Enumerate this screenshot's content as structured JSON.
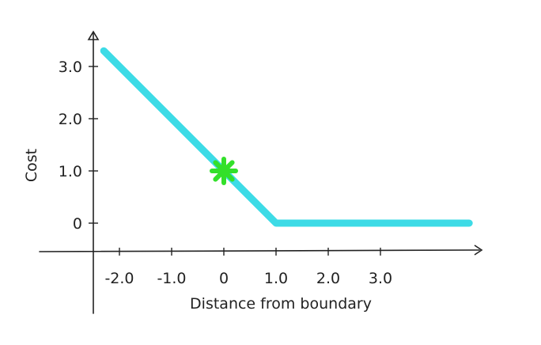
{
  "chart_data": {
    "type": "line",
    "title": "",
    "xlabel": "Distance from boundary",
    "ylabel": "Cost",
    "x_ticks": [
      -2.0,
      -1.0,
      0,
      1.0,
      2.0,
      3.0
    ],
    "x_tick_labels": [
      "-2.0",
      "-1.0",
      "0",
      "1.0",
      "2.0",
      "3.0"
    ],
    "y_ticks": [
      0,
      1.0,
      2.0,
      3.0
    ],
    "y_tick_labels": [
      "0",
      "1.0",
      "2.0",
      "3.0"
    ],
    "xlim": [
      -2.5,
      5.0
    ],
    "ylim": [
      -0.5,
      3.6
    ],
    "grid": false,
    "legend": "none",
    "series": [
      {
        "color": "#3ddbe6",
        "x": [
          -2.3,
          1.0,
          4.7
        ],
        "y": [
          3.3,
          0.0,
          0.0
        ]
      }
    ],
    "marker": {
      "x": 0,
      "y": 1.0,
      "color": "#33e02a"
    }
  }
}
